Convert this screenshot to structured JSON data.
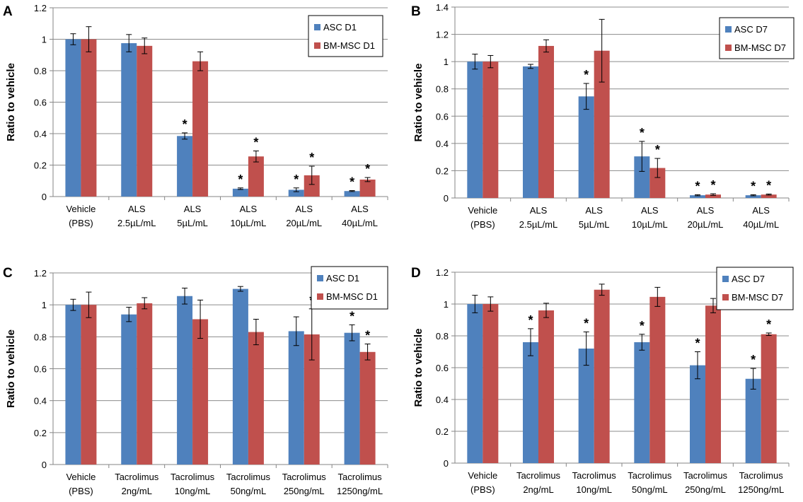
{
  "colors": {
    "asc": "#4F81BD",
    "bmmsc": "#C0504D",
    "grid": "#8C8C8C",
    "axis": "#868686",
    "error": "#000000"
  },
  "chart_data": [
    {
      "panel": "A",
      "type": "bar",
      "ylabel": "Ratio to vehicle",
      "ylim": [
        0,
        1.2
      ],
      "yticks": [
        "0",
        "0.2",
        "0.4",
        "0.6",
        "0.8",
        "1",
        "1.2"
      ],
      "categories": [
        [
          "Vehicle",
          "(PBS)"
        ],
        [
          "ALS",
          "2.5µL/mL"
        ],
        [
          "ALS",
          "5µL/mL"
        ],
        [
          "ALS",
          "10µL/mL"
        ],
        [
          "ALS",
          "20µL/mL"
        ],
        [
          "ALS",
          "40µL/mL"
        ]
      ],
      "legend_position": "top-right",
      "series": [
        {
          "name": "ASC D1",
          "color_key": "asc",
          "values": [
            1.0,
            0.975,
            0.385,
            0.05,
            0.043,
            0.035
          ],
          "errors": [
            0.035,
            0.055,
            0.02,
            0.005,
            0.012,
            0.003
          ],
          "significant": [
            false,
            false,
            true,
            true,
            true,
            true
          ]
        },
        {
          "name": "BM-MSC D1",
          "color_key": "bmmsc",
          "values": [
            1.0,
            0.958,
            0.86,
            0.255,
            0.135,
            0.108
          ],
          "errors": [
            0.08,
            0.05,
            0.06,
            0.035,
            0.058,
            0.013
          ],
          "significant": [
            false,
            false,
            false,
            true,
            true,
            true
          ]
        }
      ]
    },
    {
      "panel": "B",
      "type": "bar",
      "ylabel": "Ratio to vehicle",
      "ylim": [
        0,
        1.4
      ],
      "yticks": [
        "0",
        "0.2",
        "0.4",
        "0.6",
        "0.8",
        "1",
        "1.2",
        "1.4"
      ],
      "categories": [
        [
          "Vehicle",
          "(PBS)"
        ],
        [
          "ALS",
          "2.5µL/mL"
        ],
        [
          "ALS",
          "5µL/mL"
        ],
        [
          "ALS",
          "10µL/mL"
        ],
        [
          "ALS",
          "20µL/mL"
        ],
        [
          "ALS",
          "40µL/mL"
        ]
      ],
      "legend_position": "top-right",
      "series": [
        {
          "name": "ASC D7",
          "color_key": "asc",
          "values": [
            1.0,
            0.965,
            0.745,
            0.305,
            0.02,
            0.02
          ],
          "errors": [
            0.055,
            0.015,
            0.095,
            0.11,
            0.004,
            0.004
          ],
          "significant": [
            false,
            false,
            true,
            true,
            true,
            true
          ]
        },
        {
          "name": "BM-MSC D7",
          "color_key": "bmmsc",
          "values": [
            1.0,
            1.115,
            1.08,
            0.22,
            0.025,
            0.025
          ],
          "errors": [
            0.045,
            0.045,
            0.23,
            0.07,
            0.006,
            0.004
          ],
          "significant": [
            false,
            false,
            false,
            true,
            true,
            true
          ]
        }
      ]
    },
    {
      "panel": "C",
      "type": "bar",
      "ylabel": "Ratio to vehicle",
      "ylim": [
        0,
        1.2
      ],
      "yticks": [
        "0",
        "0.2",
        "0.4",
        "0.6",
        "0.8",
        "1",
        "1.2"
      ],
      "categories": [
        [
          "Vehicle",
          "(PBS)"
        ],
        [
          "Tacrolimus",
          "2ng/mL"
        ],
        [
          "Tacrolimus",
          "10ng/mL"
        ],
        [
          "Tacrolimus",
          "50ng/mL"
        ],
        [
          "Tacrolimus",
          "250ng/mL"
        ],
        [
          "Tacrolimus",
          "1250ng/mL"
        ]
      ],
      "legend_position": "top-right",
      "series": [
        {
          "name": "ASC D1",
          "color_key": "asc",
          "values": [
            1.0,
            0.94,
            1.055,
            1.1,
            0.835,
            0.825
          ],
          "errors": [
            0.035,
            0.045,
            0.05,
            0.015,
            0.09,
            0.05
          ],
          "significant": [
            false,
            false,
            false,
            false,
            false,
            true
          ]
        },
        {
          "name": "BM-MSC D1",
          "color_key": "bmmsc",
          "values": [
            1.0,
            1.01,
            0.91,
            0.83,
            0.815,
            0.705
          ],
          "errors": [
            0.08,
            0.035,
            0.12,
            0.08,
            0.16,
            0.05
          ],
          "significant": [
            false,
            false,
            false,
            false,
            true,
            true
          ]
        }
      ]
    },
    {
      "panel": "D",
      "type": "bar",
      "ylabel": "Ratio to vehicle",
      "ylim": [
        0,
        1.2
      ],
      "yticks": [
        "0",
        "0.2",
        "0.4",
        "0.6",
        "0.8",
        "1",
        "1.2"
      ],
      "categories": [
        [
          "Vehicle",
          "(PBS)"
        ],
        [
          "Tacrolimus",
          "2ng/mL"
        ],
        [
          "Tacrolimus",
          "10ng/mL"
        ],
        [
          "Tacrolimus",
          "50ng/mL"
        ],
        [
          "Tacrolimus",
          "250ng/mL"
        ],
        [
          "Tacrolimus",
          "1250ng/mL"
        ]
      ],
      "legend_position": "top-right",
      "series": [
        {
          "name": "ASC D7",
          "color_key": "asc",
          "values": [
            1.0,
            0.76,
            0.72,
            0.76,
            0.615,
            0.53
          ],
          "errors": [
            0.055,
            0.085,
            0.105,
            0.05,
            0.085,
            0.065
          ],
          "significant": [
            false,
            true,
            true,
            true,
            true,
            true
          ]
        },
        {
          "name": "BM-MSC D7",
          "color_key": "bmmsc",
          "values": [
            1.0,
            0.96,
            1.09,
            1.045,
            0.99,
            0.81
          ],
          "errors": [
            0.045,
            0.045,
            0.035,
            0.06,
            0.045,
            0.008
          ],
          "significant": [
            false,
            false,
            false,
            false,
            false,
            true
          ]
        }
      ]
    }
  ]
}
